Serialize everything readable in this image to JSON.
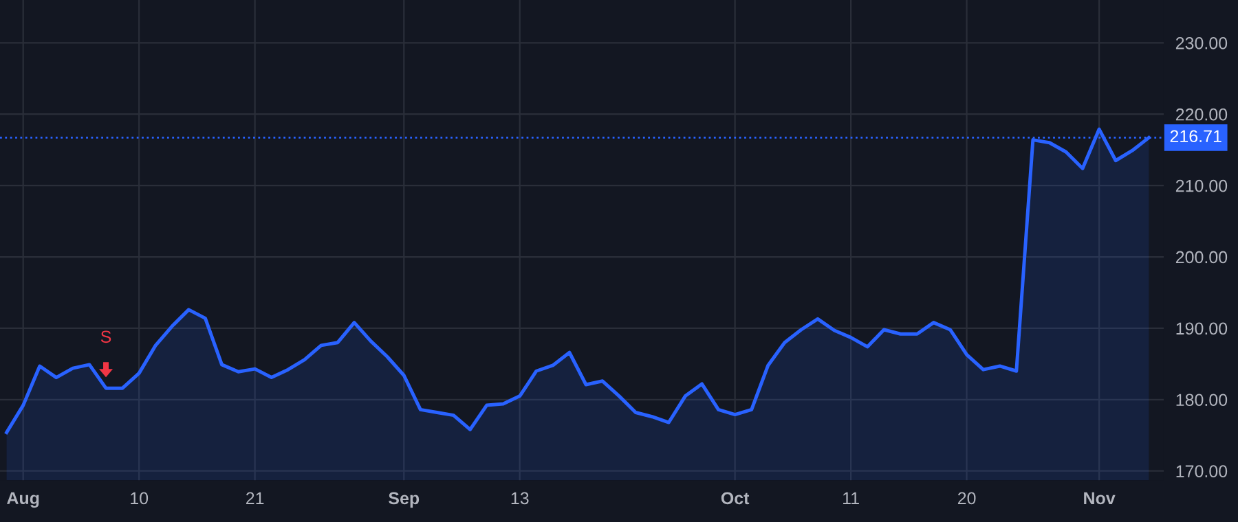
{
  "chart_data": {
    "type": "area",
    "categories": [
      null,
      "Aug",
      null,
      null,
      null,
      null,
      null,
      null,
      "10",
      null,
      null,
      null,
      null,
      null,
      null,
      "21",
      null,
      null,
      null,
      null,
      null,
      null,
      null,
      null,
      "Sep",
      null,
      null,
      null,
      null,
      null,
      null,
      "13",
      null,
      null,
      null,
      null,
      null,
      null,
      null,
      null,
      null,
      null,
      null,
      null,
      "Oct",
      null,
      null,
      null,
      null,
      null,
      null,
      "11",
      null,
      null,
      null,
      null,
      null,
      null,
      "20",
      null,
      null,
      null,
      null,
      null,
      null,
      null,
      "Nov",
      null,
      null,
      null
    ],
    "series": [
      {
        "color": "#2962ff",
        "values": [
          175.4,
          179.2,
          184.7,
          183.1,
          184.4,
          184.9,
          181.6,
          181.6,
          183.7,
          187.6,
          190.3,
          192.6,
          191.4,
          184.9,
          183.9,
          184.3,
          183.1,
          184.2,
          185.6,
          187.6,
          188.0,
          190.8,
          188.2,
          186.0,
          183.4,
          178.6,
          178.2,
          177.8,
          175.8,
          179.2,
          179.4,
          180.5,
          184.0,
          184.8,
          186.6,
          182.1,
          182.6,
          180.5,
          178.2,
          177.6,
          176.8,
          180.5,
          182.2,
          178.6,
          177.9,
          178.6,
          184.8,
          188.0,
          189.8,
          191.3,
          189.7,
          188.7,
          187.4,
          189.8,
          189.2,
          189.2,
          190.8,
          189.8,
          186.3,
          184.2,
          184.7,
          184.0,
          216.4,
          216.0,
          214.7,
          212.4,
          217.9,
          213.5,
          214.9,
          216.71
        ]
      }
    ],
    "ylim": [
      168.7,
      236
    ],
    "yticks": [
      {
        "value": 170,
        "label": "170.00"
      },
      {
        "value": 180,
        "label": "180.00"
      },
      {
        "value": 190,
        "label": "190.00"
      },
      {
        "value": 200,
        "label": "200.00"
      },
      {
        "value": 210,
        "label": "210.00"
      },
      {
        "value": 220,
        "label": "220.00"
      },
      {
        "value": 230,
        "label": "230.00"
      }
    ],
    "ref_lines": [
      {
        "axis": "y",
        "value": 216.71,
        "label": "216.71",
        "color": "#2962ff",
        "line_style": "dotted"
      }
    ],
    "annotations": [
      "S"
    ],
    "grid": true
  }
}
